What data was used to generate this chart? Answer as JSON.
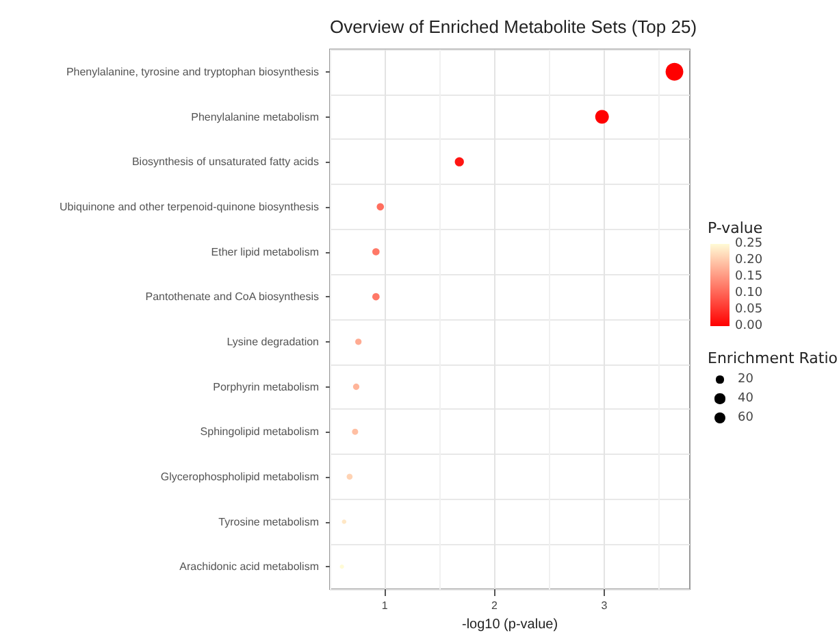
{
  "chart_data": {
    "type": "bubble",
    "title": "Overview of Enriched Metabolite Sets (Top 25)",
    "xlabel": "-log10 (p-value)",
    "clabel": "P-value",
    "legend_title": "Enrichment Ratio",
    "categories": [
      "Phenylalanine, tyrosine and tryptophan biosynthesis",
      "Phenylalanine metabolism",
      "Biosynthesis of unsaturated fatty acids",
      "Ubiquinone and other terpenoid-quinone biosynthesis",
      "Ether lipid metabolism",
      "Pantothenate and CoA biosynthesis",
      "Lysine degradation",
      "Porphyrin metabolism",
      "Sphingolipid metabolism",
      "Glycerophospholipid metabolism",
      "Tyrosine metabolism",
      "Arachidonic acid metabolism"
    ],
    "values": [
      3.64,
      2.98,
      1.68,
      0.96,
      0.92,
      0.92,
      0.76,
      0.74,
      0.73,
      0.68,
      0.63,
      0.61
    ],
    "sizes": [
      125,
      74,
      33,
      21,
      21,
      21,
      16,
      16,
      15,
      14,
      8,
      7
    ],
    "cvalues": [
      0.0002,
      0.001,
      0.021,
      0.11,
      0.12,
      0.12,
      0.17,
      0.18,
      0.19,
      0.21,
      0.23,
      0.25
    ],
    "size_legend": [
      20,
      40,
      60
    ],
    "clim": [
      0,
      0.25
    ],
    "cticks": [
      {
        "value": 0,
        "label": "0.00"
      },
      {
        "value": 0.05,
        "label": "0.05"
      },
      {
        "value": 0.1,
        "label": "0.10"
      },
      {
        "value": 0.15,
        "label": "0.15"
      },
      {
        "value": 0.2,
        "label": "0.20"
      },
      {
        "value": 0.25,
        "label": "0.25"
      }
    ],
    "orientation": "horizontal",
    "xlim": [
      0.5,
      3.78
    ],
    "xticks": [
      1,
      2,
      3
    ],
    "grid": true
  }
}
